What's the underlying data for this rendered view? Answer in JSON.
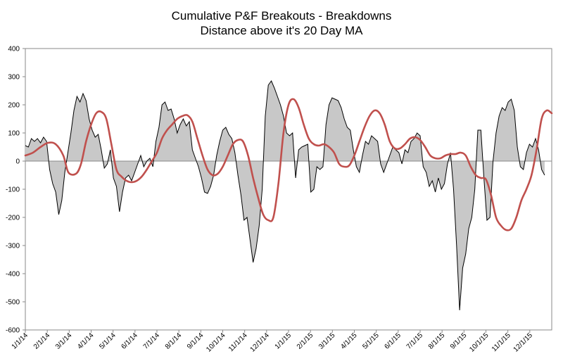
{
  "chart_data": {
    "type": "area",
    "title": [
      "Cumulative P&F Breakouts - Breakdowns",
      "Distance above it's 20 Day MA"
    ],
    "xlabel": "",
    "ylabel": "",
    "ylim": [
      -600,
      400
    ],
    "yticks": [
      400,
      300,
      200,
      100,
      0,
      -100,
      -200,
      -300,
      -400,
      -500,
      -600
    ],
    "xticks": [
      "1/1/14",
      "2/1/14",
      "3/1/14",
      "4/1/14",
      "5/1/14",
      "6/1/14",
      "7/1/14",
      "8/1/14",
      "9/1/14",
      "10/1/14",
      "11/1/14",
      "12/1/14",
      "1/1/15",
      "2/1/15",
      "3/1/15",
      "4/1/15",
      "5/1/15",
      "6/1/15",
      "7/1/15",
      "8/1/15",
      "9/1/15",
      "10/1/15",
      "11/1/15",
      "12/1/15"
    ],
    "x_range": [
      0,
      104
    ],
    "grid": false,
    "legend": "none",
    "series": [
      {
        "name": "Distance above 20 Day MA",
        "style": "black line, gray fill to zero",
        "points": [
          [
            0,
            55
          ],
          [
            0.6,
            50
          ],
          [
            1.2,
            80
          ],
          [
            1.8,
            70
          ],
          [
            2.4,
            80
          ],
          [
            3,
            65
          ],
          [
            3.6,
            85
          ],
          [
            4.2,
            70
          ],
          [
            4.8,
            -30
          ],
          [
            5.4,
            -80
          ],
          [
            6,
            -110
          ],
          [
            6.6,
            -190
          ],
          [
            7.2,
            -140
          ],
          [
            7.8,
            -40
          ],
          [
            8.4,
            30
          ],
          [
            9,
            100
          ],
          [
            9.6,
            180
          ],
          [
            10.2,
            230
          ],
          [
            10.8,
            210
          ],
          [
            11.4,
            240
          ],
          [
            12,
            215
          ],
          [
            12.6,
            150
          ],
          [
            13.2,
            110
          ],
          [
            13.8,
            85
          ],
          [
            14.4,
            95
          ],
          [
            15,
            40
          ],
          [
            15.6,
            -25
          ],
          [
            16.2,
            -10
          ],
          [
            16.8,
            40
          ],
          [
            17.4,
            -60
          ],
          [
            18,
            -90
          ],
          [
            18.6,
            -180
          ],
          [
            19.2,
            -110
          ],
          [
            19.8,
            -60
          ],
          [
            20.4,
            -50
          ],
          [
            21,
            -70
          ],
          [
            21.6,
            -40
          ],
          [
            22.2,
            -10
          ],
          [
            22.8,
            20
          ],
          [
            23.4,
            -20
          ],
          [
            24,
            0
          ],
          [
            24.6,
            10
          ],
          [
            25.2,
            -20
          ],
          [
            25.8,
            70
          ],
          [
            26.4,
            120
          ],
          [
            27,
            200
          ],
          [
            27.6,
            210
          ],
          [
            28.2,
            180
          ],
          [
            28.8,
            185
          ],
          [
            29.4,
            150
          ],
          [
            30,
            100
          ],
          [
            30.6,
            130
          ],
          [
            31.2,
            150
          ],
          [
            31.8,
            125
          ],
          [
            32.4,
            140
          ],
          [
            33,
            40
          ],
          [
            33.6,
            10
          ],
          [
            34.2,
            -20
          ],
          [
            34.8,
            -60
          ],
          [
            35.4,
            -110
          ],
          [
            36,
            -115
          ],
          [
            36.6,
            -90
          ],
          [
            37.2,
            -50
          ],
          [
            37.8,
            20
          ],
          [
            38.4,
            70
          ],
          [
            39,
            110
          ],
          [
            39.6,
            120
          ],
          [
            40.2,
            95
          ],
          [
            40.8,
            80
          ],
          [
            41.4,
            30
          ],
          [
            42,
            -50
          ],
          [
            42.6,
            -120
          ],
          [
            43.2,
            -210
          ],
          [
            43.8,
            -200
          ],
          [
            44.4,
            -280
          ],
          [
            45,
            -360
          ],
          [
            45.6,
            -310
          ],
          [
            46.2,
            -230
          ],
          [
            46.8,
            -100
          ],
          [
            47.4,
            160
          ],
          [
            48,
            270
          ],
          [
            48.6,
            285
          ],
          [
            49.2,
            260
          ],
          [
            49.8,
            230
          ],
          [
            50.4,
            200
          ],
          [
            51,
            160
          ],
          [
            51.6,
            100
          ],
          [
            52.2,
            90
          ],
          [
            52.8,
            100
          ],
          [
            53.4,
            -60
          ],
          [
            54,
            40
          ],
          [
            54.6,
            50
          ],
          [
            55.2,
            55
          ],
          [
            55.8,
            60
          ],
          [
            56.4,
            -110
          ],
          [
            57,
            -100
          ],
          [
            57.6,
            -20
          ],
          [
            58.2,
            -30
          ],
          [
            58.8,
            -20
          ],
          [
            59.4,
            130
          ],
          [
            60,
            200
          ],
          [
            60.6,
            225
          ],
          [
            61.2,
            220
          ],
          [
            61.8,
            215
          ],
          [
            62.4,
            190
          ],
          [
            63,
            150
          ],
          [
            63.6,
            120
          ],
          [
            64.2,
            110
          ],
          [
            64.8,
            40
          ],
          [
            65.4,
            -20
          ],
          [
            66,
            -40
          ],
          [
            66.6,
            20
          ],
          [
            67.2,
            70
          ],
          [
            67.8,
            60
          ],
          [
            68.4,
            90
          ],
          [
            69,
            80
          ],
          [
            69.6,
            70
          ],
          [
            70.2,
            -10
          ],
          [
            70.8,
            -40
          ],
          [
            71.4,
            -10
          ],
          [
            72,
            20
          ],
          [
            72.6,
            50
          ],
          [
            73.2,
            40
          ],
          [
            73.8,
            30
          ],
          [
            74.4,
            -10
          ],
          [
            75,
            40
          ],
          [
            75.6,
            30
          ],
          [
            76.2,
            70
          ],
          [
            76.8,
            80
          ],
          [
            77.4,
            100
          ],
          [
            78,
            90
          ],
          [
            78.6,
            -20
          ],
          [
            79.2,
            -40
          ],
          [
            79.8,
            -90
          ],
          [
            80.4,
            -70
          ],
          [
            81,
            -110
          ],
          [
            81.6,
            -60
          ],
          [
            82.2,
            -100
          ],
          [
            82.8,
            -80
          ],
          [
            83.4,
            -10
          ],
          [
            84,
            30
          ],
          [
            84.6,
            -100
          ],
          [
            85.2,
            -300
          ],
          [
            85.8,
            -530
          ],
          [
            86.4,
            -380
          ],
          [
            87,
            -330
          ],
          [
            87.6,
            -240
          ],
          [
            88.2,
            -200
          ],
          [
            88.8,
            -100
          ],
          [
            89.4,
            110
          ],
          [
            90,
            110
          ],
          [
            90.6,
            -60
          ],
          [
            91.2,
            -210
          ],
          [
            91.8,
            -200
          ],
          [
            92.4,
            0
          ],
          [
            93,
            100
          ],
          [
            93.6,
            160
          ],
          [
            94.2,
            190
          ],
          [
            94.8,
            180
          ],
          [
            95.4,
            210
          ],
          [
            96,
            220
          ],
          [
            96.6,
            180
          ],
          [
            97.2,
            50
          ],
          [
            97.8,
            -20
          ],
          [
            98.4,
            -30
          ],
          [
            99,
            30
          ],
          [
            99.6,
            60
          ],
          [
            100.2,
            50
          ],
          [
            100.8,
            80
          ],
          [
            101.4,
            40
          ],
          [
            102,
            -30
          ],
          [
            102.6,
            -50
          ]
        ]
      },
      {
        "name": "20 Day MA",
        "style": "red smooth line",
        "points": [
          [
            0,
            20
          ],
          [
            1.5,
            30
          ],
          [
            3,
            50
          ],
          [
            4.5,
            65
          ],
          [
            6,
            60
          ],
          [
            7.5,
            20
          ],
          [
            8.5,
            -40
          ],
          [
            10,
            -45
          ],
          [
            11,
            -10
          ],
          [
            12,
            70
          ],
          [
            13,
            130
          ],
          [
            14,
            170
          ],
          [
            15,
            175
          ],
          [
            16,
            150
          ],
          [
            17,
            60
          ],
          [
            18,
            -30
          ],
          [
            19,
            -55
          ],
          [
            20,
            -70
          ],
          [
            21,
            -75
          ],
          [
            22,
            -70
          ],
          [
            23,
            -55
          ],
          [
            24,
            -30
          ],
          [
            25,
            0
          ],
          [
            26,
            30
          ],
          [
            27,
            80
          ],
          [
            28,
            110
          ],
          [
            29,
            130
          ],
          [
            30,
            150
          ],
          [
            31,
            160
          ],
          [
            32,
            163
          ],
          [
            33,
            140
          ],
          [
            34,
            80
          ],
          [
            35,
            20
          ],
          [
            36,
            -30
          ],
          [
            37,
            -50
          ],
          [
            38,
            -45
          ],
          [
            39,
            -20
          ],
          [
            40,
            20
          ],
          [
            41,
            60
          ],
          [
            42,
            75
          ],
          [
            43,
            70
          ],
          [
            44,
            20
          ],
          [
            45,
            -60
          ],
          [
            46,
            -130
          ],
          [
            47,
            -190
          ],
          [
            48,
            -210
          ],
          [
            49,
            -200
          ],
          [
            50,
            -80
          ],
          [
            51,
            100
          ],
          [
            52,
            200
          ],
          [
            53,
            220
          ],
          [
            54,
            190
          ],
          [
            55,
            130
          ],
          [
            56,
            80
          ],
          [
            57,
            60
          ],
          [
            58,
            55
          ],
          [
            59,
            60
          ],
          [
            60,
            50
          ],
          [
            61,
            30
          ],
          [
            62,
            -10
          ],
          [
            63,
            -20
          ],
          [
            64,
            -15
          ],
          [
            65,
            20
          ],
          [
            66,
            70
          ],
          [
            67,
            120
          ],
          [
            68,
            160
          ],
          [
            69,
            180
          ],
          [
            70,
            170
          ],
          [
            71,
            130
          ],
          [
            72,
            70
          ],
          [
            73,
            45
          ],
          [
            74,
            45
          ],
          [
            75,
            60
          ],
          [
            76,
            80
          ],
          [
            77,
            85
          ],
          [
            78,
            75
          ],
          [
            79,
            50
          ],
          [
            80,
            20
          ],
          [
            81,
            10
          ],
          [
            82,
            10
          ],
          [
            83,
            20
          ],
          [
            84,
            25
          ],
          [
            85,
            25
          ],
          [
            86,
            30
          ],
          [
            87,
            20
          ],
          [
            88,
            -20
          ],
          [
            89,
            -50
          ],
          [
            90,
            -60
          ],
          [
            91,
            -65
          ],
          [
            92,
            -120
          ],
          [
            93,
            -200
          ],
          [
            94,
            -230
          ],
          [
            95,
            -245
          ],
          [
            96,
            -240
          ],
          [
            97,
            -200
          ],
          [
            98,
            -140
          ],
          [
            99,
            -100
          ],
          [
            100,
            -50
          ],
          [
            101,
            40
          ],
          [
            102,
            150
          ],
          [
            103,
            180
          ],
          [
            104,
            170
          ]
        ]
      }
    ]
  }
}
